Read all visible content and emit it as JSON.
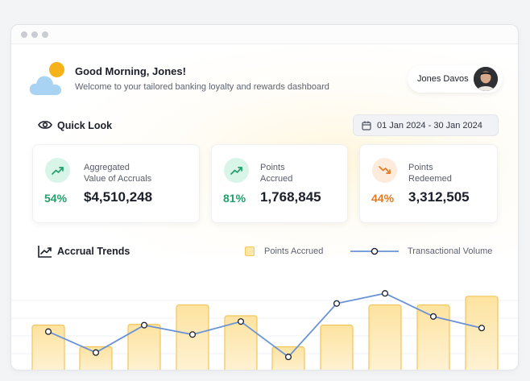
{
  "header": {
    "greeting": "Good Morning, Jones!",
    "subtitle": "Welcome to your tailored banking loyalty and rewards dashboard",
    "user_name": "Jones Davos"
  },
  "quick_look": {
    "title": "Quick Look",
    "date_range": "01 Jan 2024 - 30 Jan 2024",
    "cards": [
      {
        "label_line1": "Aggregated",
        "label_line2": "Value of Accruals",
        "percent": "54%",
        "value": "$4,510,248",
        "trend": "up"
      },
      {
        "label_line1": "Points",
        "label_line2": "Accrued",
        "percent": "81%",
        "value": "1,768,845",
        "trend": "up"
      },
      {
        "label_line1": "Points",
        "label_line2": "Redeemed",
        "percent": "44%",
        "value": "3,312,505",
        "trend": "down"
      }
    ]
  },
  "colors": {
    "up": "#22a06b",
    "down": "#e27b21",
    "bar_fill": "#fde3a0",
    "bar_stroke": "#f2c55c",
    "line": "#6a93d6"
  },
  "accrual_trends": {
    "title": "Accrual Trends",
    "legend_bars": "Points Accrued",
    "legend_line": "Transactional Volume"
  },
  "chart_data": {
    "type": "bar",
    "categories": [
      "",
      "",
      "",
      "",
      "",
      "",
      "",
      "",
      "",
      ""
    ],
    "series": [
      {
        "name": "Points Accrued",
        "type": "bar",
        "values": [
          64,
          34,
          65,
          92,
          77,
          34,
          64,
          92,
          92,
          104
        ]
      },
      {
        "name": "Transactional Volume",
        "type": "line",
        "values": [
          55,
          26,
          64,
          51,
          69,
          20,
          94,
          108,
          76,
          60
        ]
      }
    ],
    "ylim": [
      0,
      125
    ],
    "grid": true,
    "legend": "top-right"
  }
}
